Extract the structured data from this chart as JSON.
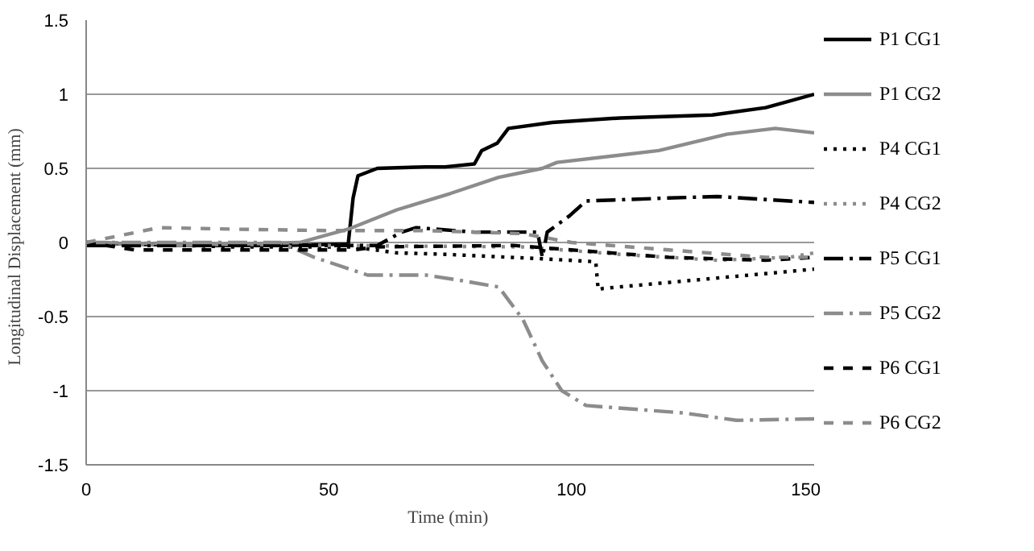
{
  "chart_data": {
    "type": "line",
    "xlabel": "Time  (min)",
    "ylabel": "Longitudinal  Displacement  (mm)",
    "xlim": [
      0,
      150
    ],
    "ylim": [
      -1.5,
      1.5
    ],
    "xticks": [
      0,
      50,
      100,
      150
    ],
    "yticks": [
      -1.5,
      -1,
      -0.5,
      0,
      0.5,
      1,
      1.5
    ],
    "grid": "y",
    "legend": "right",
    "series": [
      {
        "name": "P1 CG1",
        "color": "#000000",
        "line_style": "solid",
        "x": [
          0,
          20,
          40,
          54,
          55,
          56,
          60,
          70,
          74,
          80,
          81.5,
          84.7,
          87,
          96,
          110,
          129,
          140,
          150
        ],
        "values": [
          0,
          -0.02,
          -0.02,
          -0.01,
          0.3,
          0.45,
          0.5,
          0.51,
          0.51,
          0.53,
          0.62,
          0.67,
          0.77,
          0.81,
          0.84,
          0.86,
          0.91,
          1.0
        ]
      },
      {
        "name": "P1 CG2",
        "color": "#8c8c8c",
        "line_style": "solid",
        "x": [
          0,
          20,
          44,
          54,
          64,
          75,
          85,
          94,
          97,
          118,
          132,
          142,
          150
        ],
        "values": [
          0,
          -0.02,
          0,
          0.09,
          0.22,
          0.33,
          0.44,
          0.5,
          0.54,
          0.62,
          0.73,
          0.77,
          0.74
        ]
      },
      {
        "name": "P4 CG1",
        "color": "#000000",
        "line_style": "dotted",
        "x": [
          0,
          30,
          55,
          64,
          74,
          94,
          105,
          105.5,
          106.5,
          130,
          150
        ],
        "values": [
          0,
          -0.03,
          -0.03,
          -0.07,
          -0.08,
          -0.11,
          -0.13,
          -0.32,
          -0.31,
          -0.24,
          -0.18
        ]
      },
      {
        "name": "P4 CG2",
        "color": "#8c8c8c",
        "line_style": "dotted",
        "x": [
          0,
          50,
          90,
          110,
          130,
          145,
          150
        ],
        "values": [
          0,
          -0.02,
          -0.03,
          -0.08,
          -0.12,
          -0.1,
          -0.07
        ]
      },
      {
        "name": "P5 CG1",
        "color": "#000000",
        "line_style": "dashdot",
        "x": [
          0,
          30,
          60,
          65,
          68,
          80,
          93,
          94,
          95,
          99.6,
          103,
          120,
          130,
          150
        ],
        "values": [
          -0.02,
          -0.02,
          -0.02,
          0.07,
          0.1,
          0.07,
          0.07,
          -0.1,
          0.07,
          0.18,
          0.28,
          0.3,
          0.31,
          0.27
        ]
      },
      {
        "name": "P5 CG2",
        "color": "#8c8c8c",
        "line_style": "dashdot",
        "x": [
          0,
          40,
          47,
          58,
          70,
          76,
          85,
          90,
          94,
          98,
          103,
          123,
          134,
          150
        ],
        "values": [
          0,
          0,
          -0.1,
          -0.22,
          -0.22,
          -0.25,
          -0.3,
          -0.52,
          -0.8,
          -1.0,
          -1.1,
          -1.15,
          -1.2,
          -1.19
        ]
      },
      {
        "name": "P6 CG1",
        "color": "#000000",
        "line_style": "dashed",
        "x": [
          0,
          10,
          55,
          60,
          88,
          100,
          120,
          140,
          150
        ],
        "values": [
          0,
          -0.05,
          -0.05,
          -0.03,
          -0.02,
          -0.05,
          -0.1,
          -0.12,
          -0.1
        ]
      },
      {
        "name": "P6 CG2",
        "color": "#8c8c8c",
        "line_style": "dashed",
        "x": [
          0,
          15,
          30,
          50,
          70,
          90,
          100,
          120,
          140,
          150
        ],
        "values": [
          0,
          0.1,
          0.09,
          0.08,
          0.08,
          0.06,
          0,
          -0.05,
          -0.1,
          -0.1
        ]
      }
    ]
  }
}
